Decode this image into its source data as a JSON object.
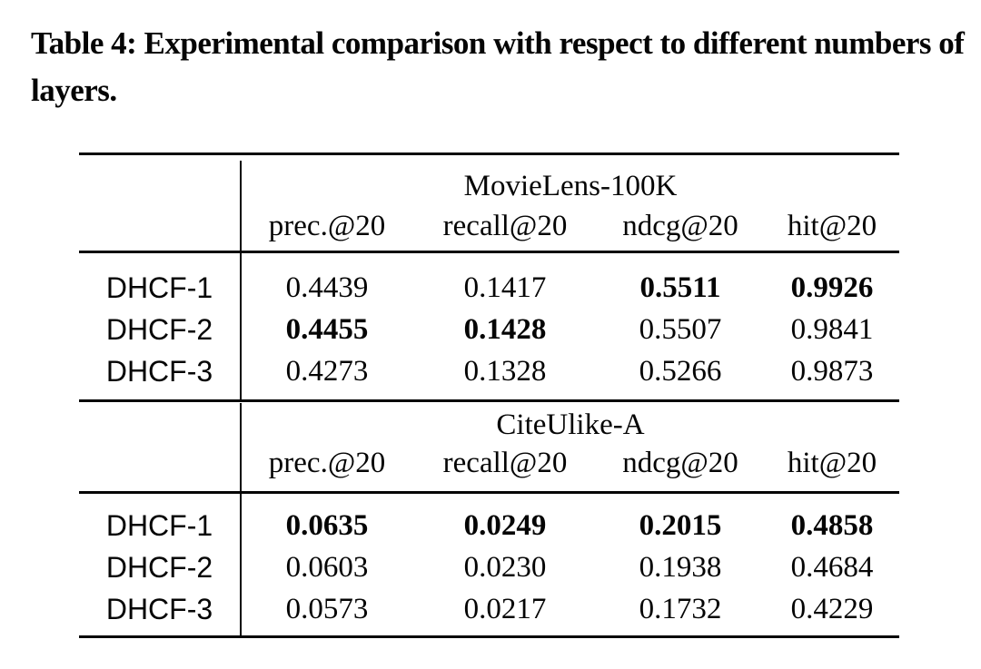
{
  "title": "Table 4: Experimental comparison with respect to different numbers of layers.",
  "table": {
    "sections": [
      {
        "dataset": "MovieLens-100K",
        "columns": [
          "prec.@20",
          "recall@20",
          "ndcg@20",
          "hit@20"
        ],
        "rows": [
          {
            "label": "DHCF-1",
            "values": [
              "0.4439",
              "0.1417",
              "0.5511",
              "0.9926"
            ]
          },
          {
            "label": "DHCF-2",
            "values": [
              "0.4455",
              "0.1428",
              "0.5507",
              "0.9841"
            ]
          },
          {
            "label": "DHCF-3",
            "values": [
              "0.4273",
              "0.1328",
              "0.5266",
              "0.9873"
            ]
          }
        ]
      },
      {
        "dataset": "CiteUlike-A",
        "columns": [
          "prec.@20",
          "recall@20",
          "ndcg@20",
          "hit@20"
        ],
        "rows": [
          {
            "label": "DHCF-1",
            "values": [
              "0.0635",
              "0.0249",
              "0.2015",
              "0.4858"
            ]
          },
          {
            "label": "DHCF-2",
            "values": [
              "0.0603",
              "0.0230",
              "0.1938",
              "0.4684"
            ]
          },
          {
            "label": "DHCF-3",
            "values": [
              "0.0573",
              "0.0217",
              "0.1732",
              "0.4229"
            ]
          }
        ]
      }
    ]
  }
}
